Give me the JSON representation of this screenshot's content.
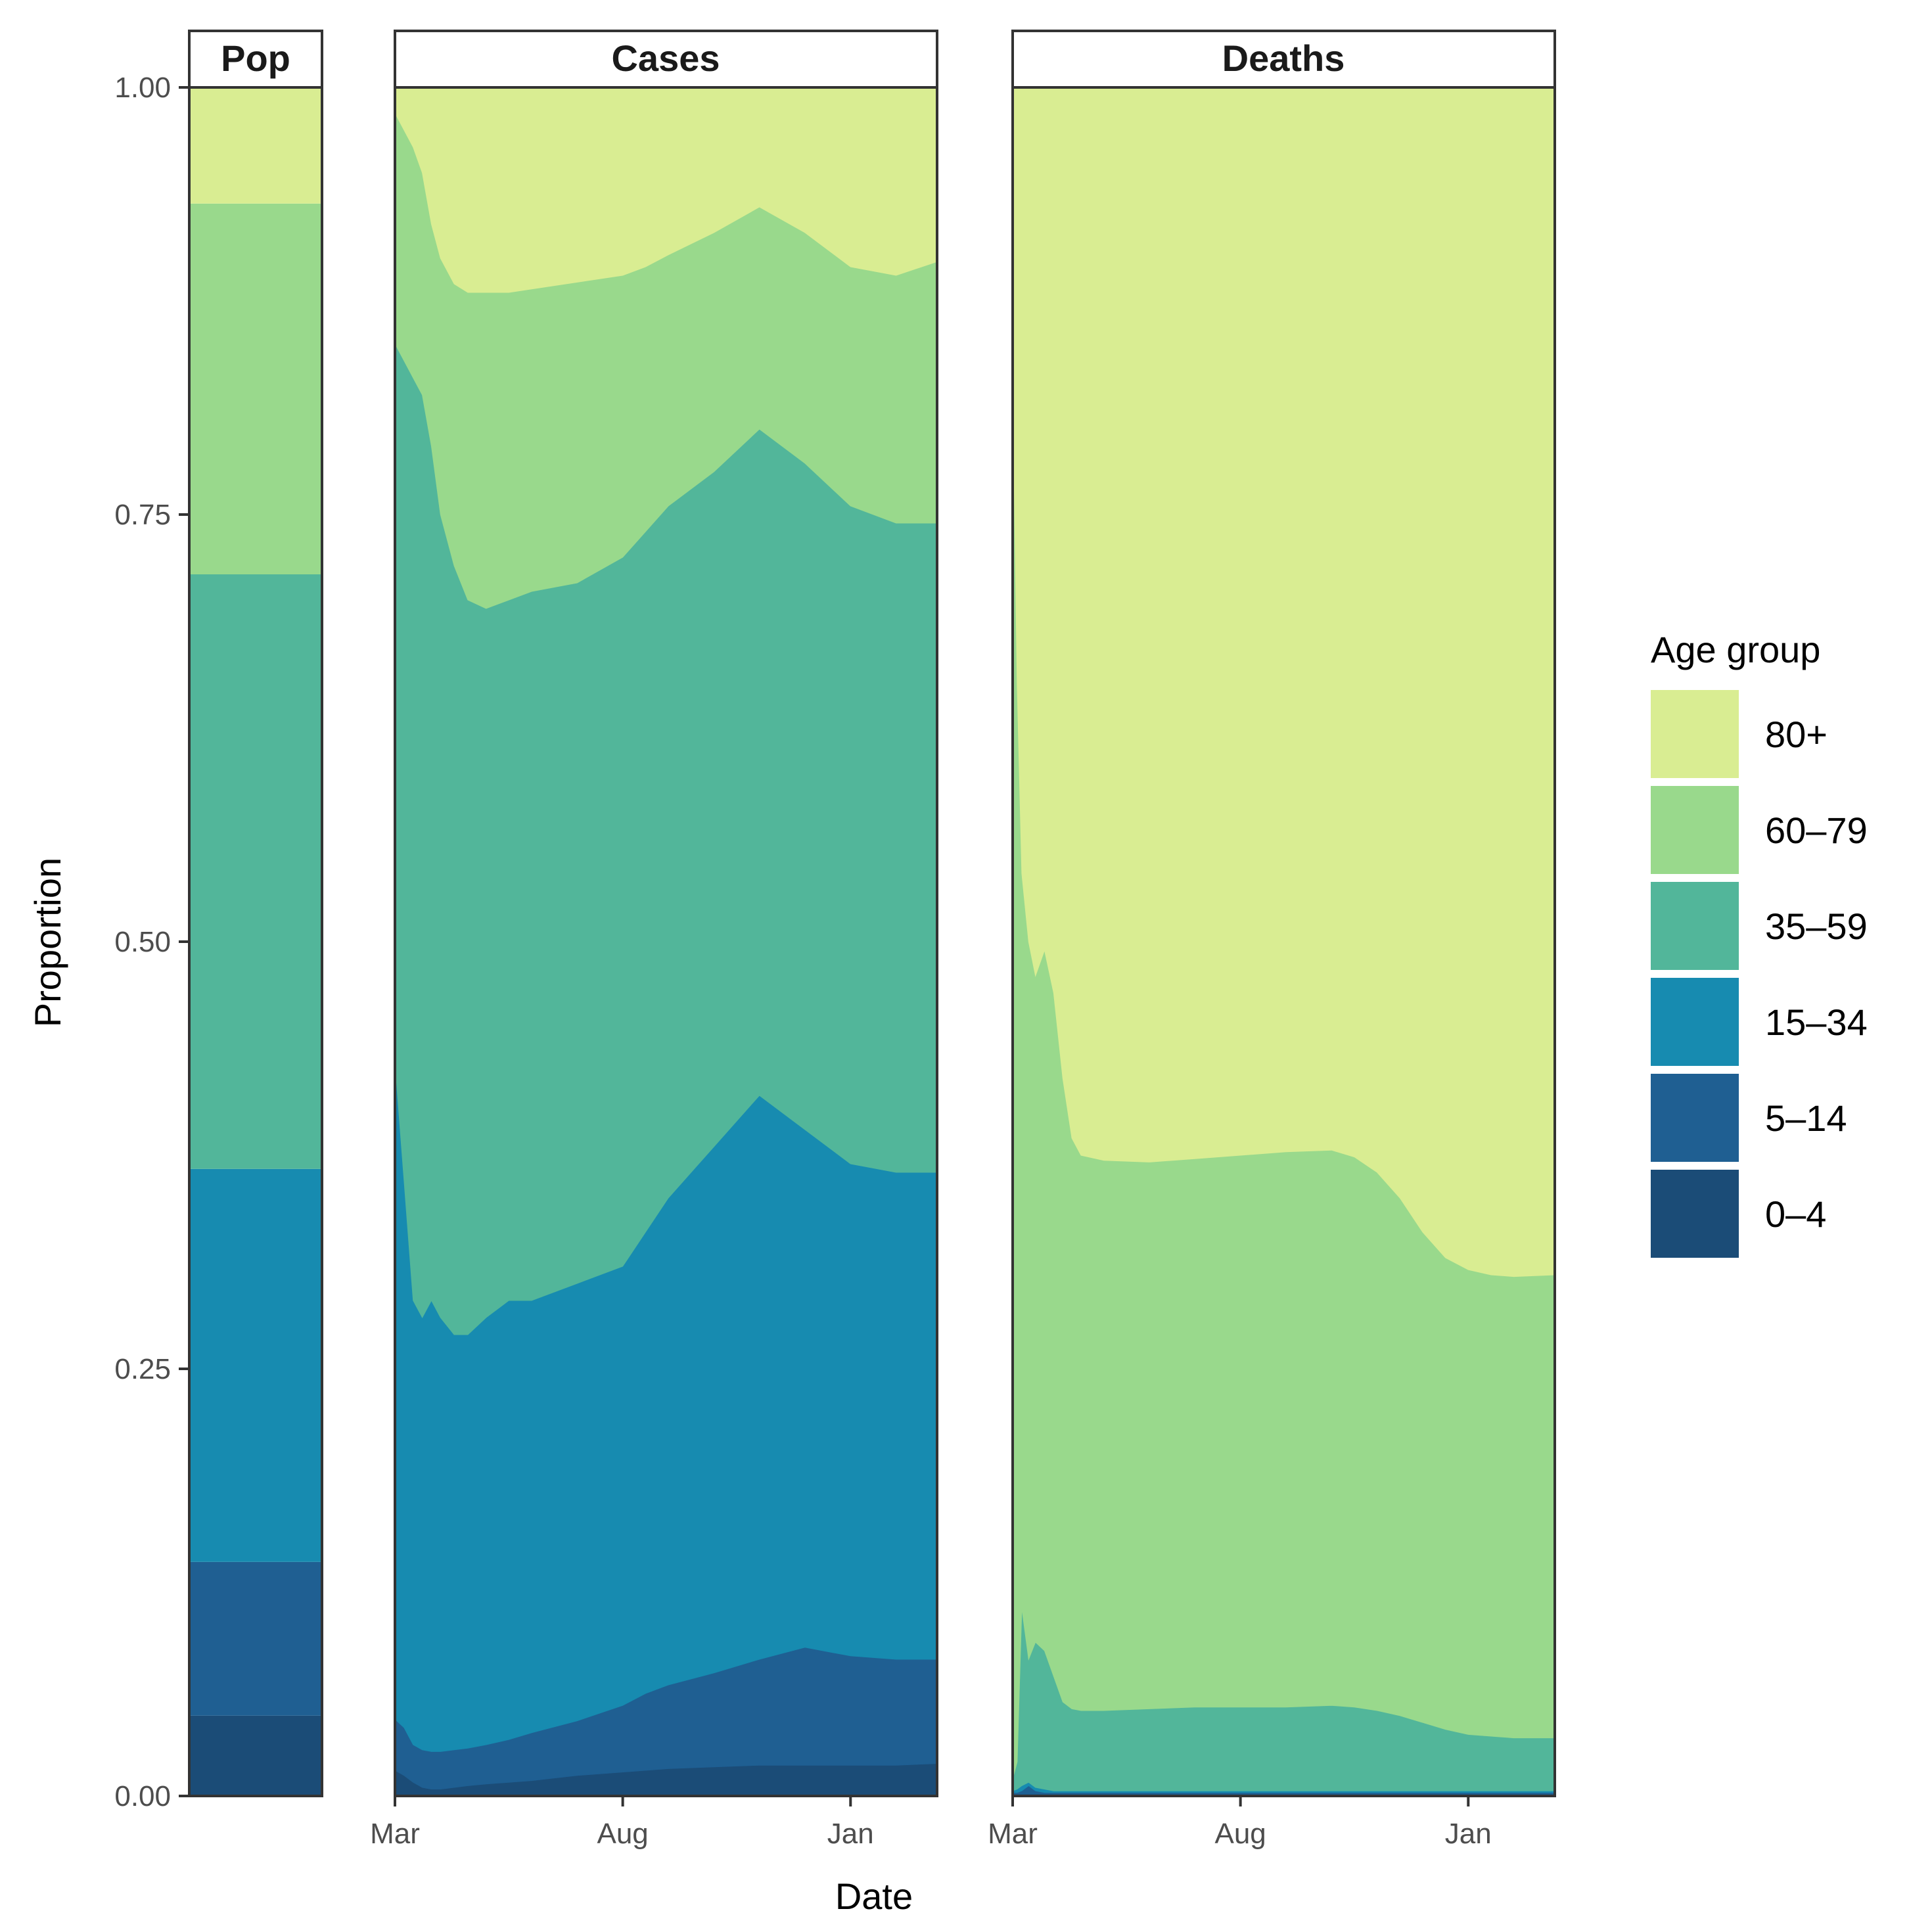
{
  "chart_data": {
    "type": "area",
    "stacked": true,
    "normalized": true,
    "ylabel": "Proportion",
    "xlabel": "Date",
    "ylim": [
      0,
      1
    ],
    "y_ticks": [
      "0.00",
      "0.25",
      "0.50",
      "0.75",
      "1.00"
    ],
    "x_ticks": [
      "Mar",
      "Aug",
      "Jan"
    ],
    "x_tick_positions_months": [
      0,
      5,
      10
    ],
    "x_range_months": [
      0,
      11.9
    ],
    "grid": false,
    "legend": {
      "title": "Age group",
      "position": "right",
      "entries": [
        "80+",
        "60–79",
        "35–59",
        "15–34",
        "5–14",
        "0–4"
      ]
    },
    "colors": {
      "0–4": "#1b4c77",
      "5–14": "#1f5f92",
      "15–34": "#178bb0",
      "35–59": "#52b69a",
      "60–79": "#99d98c",
      "80+": "#d9ed92"
    },
    "groups_bottom_to_top": [
      "0–4",
      "5–14",
      "15–34",
      "35–59",
      "60–79",
      "80+"
    ],
    "panels": [
      {
        "strip": "Pop",
        "kind": "bar",
        "shares": {
          "0–4": 0.047,
          "5–14": 0.09,
          "15–34": 0.23,
          "35–59": 0.348,
          "60–79": 0.217,
          "80+": 0.068
        }
      },
      {
        "strip": "Cases",
        "kind": "area",
        "x_months": [
          0,
          0.2,
          0.4,
          0.6,
          0.8,
          1.0,
          1.3,
          1.6,
          2.0,
          2.5,
          3.0,
          4.0,
          5.0,
          5.5,
          6.0,
          7.0,
          8.0,
          9.0,
          10.0,
          11.0,
          11.9
        ],
        "cumulative_bounds": {
          "0–4": [
            0.015,
            0.012,
            0.008,
            0.005,
            0.004,
            0.004,
            0.005,
            0.006,
            0.007,
            0.008,
            0.009,
            0.012,
            0.014,
            0.015,
            0.016,
            0.017,
            0.018,
            0.018,
            0.018,
            0.018,
            0.019
          ],
          "5–14": [
            0.045,
            0.04,
            0.03,
            0.027,
            0.026,
            0.026,
            0.027,
            0.028,
            0.03,
            0.033,
            0.037,
            0.044,
            0.053,
            0.06,
            0.065,
            0.072,
            0.08,
            0.087,
            0.082,
            0.08,
            0.08
          ],
          "15–34": [
            0.43,
            0.36,
            0.29,
            0.28,
            0.29,
            0.28,
            0.27,
            0.27,
            0.28,
            0.29,
            0.29,
            0.3,
            0.31,
            0.33,
            0.35,
            0.38,
            0.41,
            0.39,
            0.37,
            0.365,
            0.365
          ],
          "35–59": [
            0.85,
            0.84,
            0.83,
            0.82,
            0.79,
            0.75,
            0.72,
            0.7,
            0.695,
            0.7,
            0.705,
            0.71,
            0.725,
            0.74,
            0.755,
            0.775,
            0.8,
            0.78,
            0.755,
            0.745,
            0.745
          ],
          "60–79": [
            0.985,
            0.975,
            0.965,
            0.95,
            0.92,
            0.9,
            0.885,
            0.88,
            0.88,
            0.88,
            0.882,
            0.886,
            0.89,
            0.895,
            0.902,
            0.915,
            0.93,
            0.915,
            0.895,
            0.89,
            0.898
          ],
          "80+": [
            1,
            1,
            1,
            1,
            1,
            1,
            1,
            1,
            1,
            1,
            1,
            1,
            1,
            1,
            1,
            1,
            1,
            1,
            1,
            1,
            1
          ]
        }
      },
      {
        "strip": "Deaths",
        "kind": "area",
        "x_months": [
          0,
          0.1,
          0.2,
          0.35,
          0.5,
          0.7,
          0.9,
          1.1,
          1.3,
          1.5,
          2.0,
          3.0,
          4.0,
          5.0,
          6.0,
          7.0,
          7.5,
          8.0,
          8.5,
          9.0,
          9.5,
          10.0,
          10.5,
          11.0,
          11.9
        ],
        "cumulative_bounds": {
          "0–4": [
            0.001,
            0.001,
            0.001,
            0.001,
            0.001,
            0.001,
            0.001,
            0.001,
            0.001,
            0.001,
            0.001,
            0.001,
            0.001,
            0.001,
            0.001,
            0.001,
            0.001,
            0.001,
            0.001,
            0.001,
            0.001,
            0.001,
            0.001,
            0.001,
            0.001
          ],
          "5–14": [
            0.002,
            0.002,
            0.003,
            0.006,
            0.003,
            0.002,
            0.002,
            0.002,
            0.002,
            0.002,
            0.002,
            0.002,
            0.002,
            0.002,
            0.002,
            0.002,
            0.002,
            0.002,
            0.002,
            0.002,
            0.002,
            0.002,
            0.002,
            0.002,
            0.002
          ],
          "15–34": [
            0.003,
            0.004,
            0.006,
            0.008,
            0.005,
            0.004,
            0.003,
            0.003,
            0.003,
            0.003,
            0.003,
            0.003,
            0.003,
            0.003,
            0.003,
            0.003,
            0.003,
            0.003,
            0.003,
            0.003,
            0.003,
            0.003,
            0.003,
            0.003,
            0.003
          ],
          "35–59": [
            0.01,
            0.02,
            0.11,
            0.08,
            0.09,
            0.085,
            0.07,
            0.055,
            0.051,
            0.05,
            0.05,
            0.051,
            0.052,
            0.052,
            0.052,
            0.053,
            0.052,
            0.05,
            0.047,
            0.043,
            0.039,
            0.036,
            0.035,
            0.034,
            0.034
          ],
          "60–79": [
            0.83,
            0.65,
            0.54,
            0.5,
            0.48,
            0.495,
            0.47,
            0.42,
            0.385,
            0.375,
            0.372,
            0.371,
            0.373,
            0.375,
            0.377,
            0.378,
            0.374,
            0.365,
            0.35,
            0.33,
            0.315,
            0.308,
            0.305,
            0.304,
            0.305
          ],
          "80+": [
            1,
            1,
            1,
            1,
            1,
            1,
            1,
            1,
            1,
            1,
            1,
            1,
            1,
            1,
            1,
            1,
            1,
            1,
            1,
            1,
            1,
            1,
            1,
            1,
            1
          ]
        }
      }
    ]
  }
}
